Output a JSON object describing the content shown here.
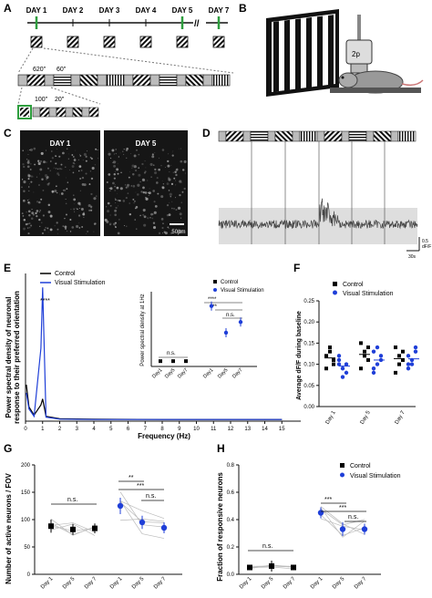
{
  "panels": {
    "A": {
      "letter": "A",
      "days": [
        "DAY 1",
        "DAY 2",
        "DAY 3",
        "DAY 4",
        "DAY 5",
        "DAY 7"
      ],
      "gap_mark": "//",
      "duration_long": "620\"",
      "duration_short": "60\"",
      "duration_zoom_long": "100\"",
      "duration_zoom_short": "20\"",
      "marker_color": "#2e9e3e"
    },
    "B": {
      "letter": "B",
      "objective_label": "2p"
    },
    "C": {
      "letter": "C",
      "image_titles": [
        "DAY 1",
        "DAY 5"
      ],
      "scale_bar": "50μm"
    },
    "D": {
      "letter": "D",
      "scale_y": "0.5",
      "scale_y_unit": "dF/F",
      "scale_x": "30s"
    },
    "E": {
      "letter": "E",
      "ylabel": [
        "Power spectral density of neuronal",
        "response to their preferred orientation"
      ],
      "xlabel": "Frequency (Hz)",
      "legend": [
        "Control",
        "Visual Stimulation"
      ],
      "significance": "****",
      "inset_ylabel": "Power spectral density at 1Hz",
      "inset_legend": [
        "Control",
        "Visual Stimulation"
      ],
      "inset_significance": [
        "n.s.",
        "****",
        "***",
        "n.s."
      ],
      "inset_ticks": [
        "Day1",
        "Day5",
        "Day7",
        "Day1",
        "Day5",
        "Day7"
      ]
    },
    "F": {
      "letter": "F",
      "ylabel": "Average dF/F during baseline",
      "legend": [
        "Control",
        "Visual Stimulation"
      ],
      "yticks": [
        "0.00",
        "0.05",
        "0.10",
        "0.15",
        "0.20",
        "0.25"
      ],
      "xticks": [
        "Day 1",
        "Day 5",
        "Day 7"
      ]
    },
    "G": {
      "letter": "G",
      "ylabel": "Number of active neurons / FOV",
      "yticks": [
        "0",
        "50",
        "100",
        "150",
        "200"
      ],
      "xticks": [
        "Day 1",
        "Day 5",
        "Day 7",
        "Day 1",
        "Day 5",
        "Day 7"
      ],
      "significance": [
        "n.s.",
        "**",
        "***",
        "n.s."
      ]
    },
    "H": {
      "letter": "H",
      "ylabel": "Fraction of responsive neurons",
      "yticks": [
        "0.0",
        "0.2",
        "0.4",
        "0.6",
        "0.8"
      ],
      "xticks": [
        "Day 1",
        "Day 5",
        "Day 7",
        "Day 1",
        "Day 5",
        "Day 7"
      ],
      "legend": [
        "Control",
        "Visual Stimulation"
      ],
      "significance": [
        "n.s.",
        "***",
        "***",
        "n.s."
      ]
    }
  },
  "colors": {
    "control": "#000000",
    "visual": "#1f3fd8"
  },
  "chart_data": [
    {
      "id": "E",
      "type": "line",
      "xlabel": "Frequency (Hz)",
      "x_ticks": [
        0,
        1,
        2,
        3,
        4,
        5,
        6,
        7,
        8,
        9,
        10,
        11,
        12,
        13,
        14,
        15
      ],
      "xlim": [
        0,
        16
      ],
      "series": [
        {
          "name": "Control",
          "x": [
            0.05,
            0.2,
            0.5,
            0.9,
            1.0,
            1.2,
            2,
            4,
            8,
            15
          ],
          "y": [
            0.9,
            0.35,
            0.15,
            0.4,
            0.55,
            0.12,
            0.06,
            0.05,
            0.04,
            0.04
          ]
        },
        {
          "name": "Visual Stimulation",
          "x": [
            0.05,
            0.2,
            0.5,
            0.9,
            1.0,
            1.2,
            2,
            4,
            8,
            15
          ],
          "y": [
            0.7,
            0.3,
            0.12,
            1.8,
            3.3,
            0.1,
            0.05,
            0.04,
            0.04,
            0.04
          ]
        }
      ]
    },
    {
      "id": "E-inset",
      "type": "scatter",
      "ylabel": "Power spectral density at 1Hz",
      "categories": [
        "Day1",
        "Day5",
        "Day7",
        "Day1",
        "Day5",
        "Day7"
      ],
      "series": [
        {
          "name": "Control",
          "values": [
            0.3,
            0.3,
            0.3
          ]
        },
        {
          "name": "Visual Stimulation",
          "values": [
            3.4,
            1.9,
            2.5
          ]
        }
      ]
    },
    {
      "id": "F",
      "type": "scatter",
      "ylabel": "Average dF/F during baseline",
      "ylim": [
        0,
        0.25
      ],
      "categories": [
        "Day 1",
        "Day 5",
        "Day 7"
      ],
      "series": [
        {
          "name": "Control",
          "values": [
            [
              0.12,
              0.14,
              0.11,
              0.09,
              0.13,
              0.1
            ],
            [
              0.15,
              0.13,
              0.11,
              0.09,
              0.12,
              0.14
            ],
            [
              0.14,
              0.1,
              0.13,
              0.08,
              0.12,
              0.11
            ]
          ]
        },
        {
          "name": "Visual Stimulation",
          "values": [
            [
              0.11,
              0.09,
              0.08,
              0.1,
              0.07,
              0.1,
              0.12
            ],
            [
              0.13,
              0.1,
              0.12,
              0.09,
              0.14,
              0.11,
              0.08
            ],
            [
              0.12,
              0.1,
              0.13,
              0.09,
              0.11,
              0.14,
              0.1
            ]
          ]
        }
      ]
    },
    {
      "id": "G",
      "type": "scatter",
      "ylabel": "Number of active neurons / FOV",
      "ylim": [
        0,
        200
      ],
      "categories": [
        "Day 1",
        "Day 5",
        "Day 7",
        "Day 1",
        "Day 5",
        "Day 7"
      ],
      "series": [
        {
          "name": "Control",
          "values": [
            88,
            82,
            84
          ],
          "errors": [
            12,
            10,
            9
          ]
        },
        {
          "name": "Visual Stimulation",
          "values": [
            125,
            95,
            85
          ],
          "errors": [
            15,
            12,
            10
          ]
        }
      ]
    },
    {
      "id": "H",
      "type": "scatter",
      "ylabel": "Fraction of responsive neurons",
      "ylim": [
        0,
        0.8
      ],
      "categories": [
        "Day 1",
        "Day 5",
        "Day 7",
        "Day 1",
        "Day 5",
        "Day 7"
      ],
      "series": [
        {
          "name": "Control",
          "values": [
            0.05,
            0.06,
            0.05
          ],
          "errors": [
            0.02,
            0.04,
            0.02
          ]
        },
        {
          "name": "Visual Stimulation",
          "values": [
            0.45,
            0.33,
            0.33
          ],
          "errors": [
            0.04,
            0.05,
            0.04
          ]
        }
      ]
    }
  ]
}
